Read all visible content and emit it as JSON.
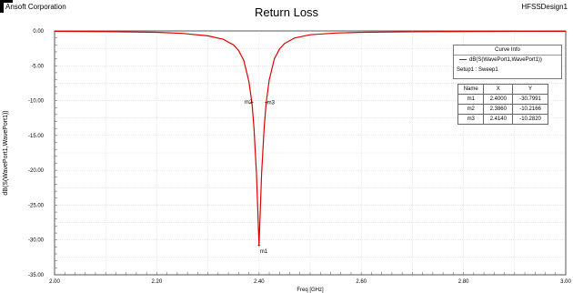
{
  "header": {
    "company": "Ansoft Corporation",
    "design": "HFSSDesign1"
  },
  "chart_data": {
    "type": "line",
    "title": "Return Loss",
    "xlabel": "Freq [GHz]",
    "ylabel": "dB(S(WavePort1,WavePort1))",
    "xlim": [
      2.0,
      3.0
    ],
    "ylim": [
      -35.0,
      0.0
    ],
    "x_ticks": [
      "2.00",
      "2.20",
      "2.40",
      "2.60",
      "2.80",
      "3.00"
    ],
    "y_ticks": [
      "0.00",
      "-5.00",
      "-10.00",
      "-15.00",
      "-20.00",
      "-25.00",
      "-30.00",
      "-35.00"
    ],
    "grid": true,
    "series": [
      {
        "name": "dB(S(WavePort1,WavePort1))",
        "color": "#e00000",
        "x": [
          2.0,
          2.1,
          2.2,
          2.25,
          2.3,
          2.33,
          2.35,
          2.36,
          2.37,
          2.38,
          2.386,
          2.39,
          2.395,
          2.4,
          2.405,
          2.41,
          2.414,
          2.42,
          2.43,
          2.44,
          2.45,
          2.47,
          2.5,
          2.55,
          2.6,
          2.7,
          2.8,
          2.9,
          3.0
        ],
        "y": [
          -0.05,
          -0.1,
          -0.2,
          -0.35,
          -0.7,
          -1.2,
          -2.0,
          -2.8,
          -4.2,
          -7.2,
          -10.2166,
          -13.8,
          -20.5,
          -30.7991,
          -20.5,
          -13.9,
          -10.282,
          -7.0,
          -4.0,
          -2.6,
          -1.8,
          -1.0,
          -0.55,
          -0.3,
          -0.2,
          -0.12,
          -0.08,
          -0.06,
          -0.05
        ]
      }
    ],
    "markers": [
      {
        "label": "m1",
        "x": 2.4,
        "y": -30.7991
      },
      {
        "label": "m2",
        "x": 2.386,
        "y": -10.2166
      },
      {
        "label": "m3",
        "x": 2.414,
        "y": -10.282
      }
    ]
  },
  "legend": {
    "header": "Curve Info",
    "trace": "dB(S(WavePort1,WavePort1))",
    "setup": "Setup1 : Sweep1"
  },
  "marker_table": {
    "headers": [
      "Name",
      "X",
      "Y"
    ],
    "rows": [
      [
        "m1",
        "2.4000",
        "-30.7991"
      ],
      [
        "m2",
        "2.3860",
        "-10.2166"
      ],
      [
        "m3",
        "2.4140",
        "-10.2820"
      ]
    ]
  }
}
